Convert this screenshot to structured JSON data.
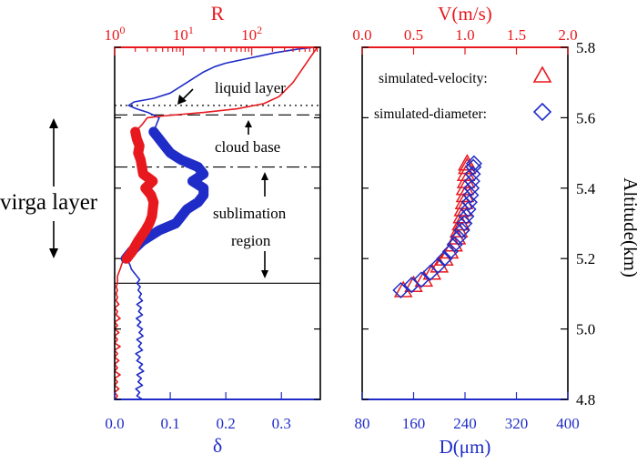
{
  "colors": {
    "red": "#e8191e",
    "blue": "#1f2cc7",
    "black": "#000000"
  },
  "texts": {
    "left_top_label": "R",
    "left_bottom_label": "δ",
    "right_top_label": "V(m/s)",
    "right_bottom_label": "D(μm)",
    "altitude_label": "Altitude(km)",
    "virga_label": "virga layer",
    "liquid_layer": "liquid layer",
    "cloud_base": "cloud base",
    "sublimation_1": "sublimation",
    "sublimation_2": "region",
    "legend_velocity": "simulated-velocity:",
    "legend_diameter": "simulated-diameter:"
  },
  "chart_data": [
    {
      "type": "line",
      "panel": "left",
      "x_bottom": {
        "label": "δ",
        "range": [
          0,
          0.37
        ],
        "ticks": [
          0.0,
          0.1,
          0.2,
          0.3
        ],
        "tick_labels": [
          "0.0",
          "0.1",
          "0.2",
          "0.3"
        ]
      },
      "x_top": {
        "label": "R",
        "scale": "log",
        "range": [
          1,
          1000
        ],
        "ticks": [
          1,
          10,
          100
        ],
        "tick_labels": [
          {
            "base": "10",
            "exp": "0"
          },
          {
            "base": "10",
            "exp": "1"
          },
          {
            "base": "10",
            "exp": "2"
          }
        ]
      },
      "y": {
        "range": [
          4.8,
          5.8
        ]
      },
      "reference_lines": [
        {
          "y": 5.635,
          "style": "dotted",
          "meaning": "liquid layer"
        },
        {
          "y": 5.608,
          "style": "dashed",
          "meaning": "cloud base"
        },
        {
          "y": 5.46,
          "style": "dashdot",
          "meaning": "sublimation region top"
        },
        {
          "y": 5.13,
          "style": "solid",
          "meaning": "sublimation region bottom"
        }
      ],
      "series": [
        {
          "name": "δ (full profile)",
          "axis": "bottom",
          "color": "#1f2cc7",
          "points": [
            [
              0.05,
              4.8
            ],
            [
              0.04,
              4.81
            ],
            [
              0.045,
              4.82
            ],
            [
              0.038,
              4.83
            ],
            [
              0.05,
              4.84
            ],
            [
              0.042,
              4.85
            ],
            [
              0.048,
              4.86
            ],
            [
              0.04,
              4.87
            ],
            [
              0.052,
              4.88
            ],
            [
              0.044,
              4.89
            ],
            [
              0.05,
              4.9
            ],
            [
              0.04,
              4.91
            ],
            [
              0.046,
              4.92
            ],
            [
              0.038,
              4.93
            ],
            [
              0.05,
              4.94
            ],
            [
              0.043,
              4.95
            ],
            [
              0.048,
              4.96
            ],
            [
              0.04,
              4.97
            ],
            [
              0.051,
              4.98
            ],
            [
              0.044,
              4.99
            ],
            [
              0.05,
              5.0
            ],
            [
              0.041,
              5.01
            ],
            [
              0.047,
              5.02
            ],
            [
              0.039,
              5.03
            ],
            [
              0.05,
              5.04
            ],
            [
              0.043,
              5.05
            ],
            [
              0.048,
              5.06
            ],
            [
              0.04,
              5.07
            ],
            [
              0.05,
              5.08
            ],
            [
              0.044,
              5.09
            ],
            [
              0.048,
              5.1
            ],
            [
              0.042,
              5.11
            ],
            [
              0.046,
              5.12
            ],
            [
              0.04,
              5.13
            ],
            [
              0.045,
              5.14
            ],
            [
              0.04,
              5.15
            ],
            [
              0.035,
              5.16
            ],
            [
              0.03,
              5.17
            ],
            [
              0.028,
              5.18
            ],
            [
              0.025,
              5.19
            ],
            [
              0.02,
              5.2
            ],
            [
              0.03,
              5.22
            ],
            [
              0.05,
              5.25
            ],
            [
              0.08,
              5.28
            ],
            [
              0.11,
              5.3
            ],
            [
              0.12,
              5.32
            ],
            [
              0.13,
              5.34
            ],
            [
              0.15,
              5.36
            ],
            [
              0.16,
              5.38
            ],
            [
              0.16,
              5.4
            ],
            [
              0.14,
              5.42
            ],
            [
              0.16,
              5.44
            ],
            [
              0.15,
              5.46
            ],
            [
              0.12,
              5.48
            ],
            [
              0.1,
              5.5
            ],
            [
              0.09,
              5.52
            ],
            [
              0.08,
              5.54
            ],
            [
              0.07,
              5.56
            ],
            [
              0.075,
              5.58
            ],
            [
              0.08,
              5.6
            ],
            [
              0.06,
              5.615
            ],
            [
              0.04,
              5.625
            ],
            [
              0.025,
              5.635
            ],
            [
              0.035,
              5.645
            ],
            [
              0.07,
              5.655
            ],
            [
              0.1,
              5.67
            ],
            [
              0.12,
              5.69
            ],
            [
              0.14,
              5.71
            ],
            [
              0.16,
              5.73
            ],
            [
              0.18,
              5.745
            ],
            [
              0.2,
              5.755
            ],
            [
              0.23,
              5.765
            ],
            [
              0.26,
              5.775
            ],
            [
              0.29,
              5.785
            ],
            [
              0.33,
              5.795
            ],
            [
              0.36,
              5.8
            ]
          ]
        },
        {
          "name": "δ (sublimation region)",
          "axis": "bottom",
          "color": "#1f2cc7",
          "points": [
            [
              0.02,
              5.2
            ],
            [
              0.03,
              5.22
            ],
            [
              0.05,
              5.25
            ],
            [
              0.08,
              5.28
            ],
            [
              0.11,
              5.3
            ],
            [
              0.12,
              5.32
            ],
            [
              0.13,
              5.34
            ],
            [
              0.15,
              5.36
            ],
            [
              0.16,
              5.38
            ],
            [
              0.16,
              5.4
            ],
            [
              0.14,
              5.42
            ],
            [
              0.16,
              5.44
            ],
            [
              0.15,
              5.46
            ],
            [
              0.12,
              5.48
            ],
            [
              0.1,
              5.5
            ],
            [
              0.09,
              5.52
            ],
            [
              0.08,
              5.54
            ],
            [
              0.07,
              5.56
            ]
          ]
        },
        {
          "name": "R (full profile)",
          "axis": "top",
          "color": "#e8191e",
          "points": [
            [
              1.0,
              4.8
            ],
            [
              1.1,
              4.81
            ],
            [
              1.0,
              4.82
            ],
            [
              1.15,
              4.83
            ],
            [
              1.0,
              4.84
            ],
            [
              1.1,
              4.85
            ],
            [
              1.0,
              4.86
            ],
            [
              1.2,
              4.87
            ],
            [
              1.0,
              4.88
            ],
            [
              1.1,
              4.89
            ],
            [
              1.0,
              4.9
            ],
            [
              1.15,
              4.91
            ],
            [
              1.0,
              4.92
            ],
            [
              1.1,
              4.93
            ],
            [
              1.0,
              4.94
            ],
            [
              1.2,
              4.95
            ],
            [
              1.0,
              4.96
            ],
            [
              1.1,
              4.97
            ],
            [
              1.0,
              4.98
            ],
            [
              1.15,
              4.99
            ],
            [
              1.0,
              5.0
            ],
            [
              1.1,
              5.01
            ],
            [
              1.0,
              5.02
            ],
            [
              1.2,
              5.03
            ],
            [
              1.05,
              5.04
            ],
            [
              1.1,
              5.05
            ],
            [
              1.0,
              5.06
            ],
            [
              1.15,
              5.07
            ],
            [
              1.05,
              5.08
            ],
            [
              1.1,
              5.09
            ],
            [
              1.05,
              5.1
            ],
            [
              1.1,
              5.11
            ],
            [
              1.05,
              5.12
            ],
            [
              1.1,
              5.13
            ],
            [
              1.1,
              5.15
            ],
            [
              1.2,
              5.17
            ],
            [
              1.3,
              5.19
            ],
            [
              1.5,
              5.2
            ],
            [
              1.8,
              5.22
            ],
            [
              2.2,
              5.25
            ],
            [
              2.8,
              5.28
            ],
            [
              3.2,
              5.3
            ],
            [
              3.5,
              5.32
            ],
            [
              3.6,
              5.34
            ],
            [
              3.7,
              5.36
            ],
            [
              3.4,
              5.38
            ],
            [
              2.8,
              5.4
            ],
            [
              3.6,
              5.42
            ],
            [
              2.6,
              5.44
            ],
            [
              2.5,
              5.46
            ],
            [
              2.4,
              5.48
            ],
            [
              2.2,
              5.5
            ],
            [
              2.3,
              5.52
            ],
            [
              2.1,
              5.54
            ],
            [
              2.0,
              5.56
            ],
            [
              2.5,
              5.58
            ],
            [
              3.0,
              5.6
            ],
            [
              5.0,
              5.605
            ],
            [
              10,
              5.61
            ],
            [
              20,
              5.615
            ],
            [
              60,
              5.625
            ],
            [
              150,
              5.64
            ],
            [
              250,
              5.66
            ],
            [
              400,
              5.7
            ],
            [
              600,
              5.75
            ],
            [
              900,
              5.8
            ]
          ]
        },
        {
          "name": "R (sublimation region)",
          "axis": "top",
          "color": "#e8191e",
          "points": [
            [
              1.5,
              5.2
            ],
            [
              1.8,
              5.22
            ],
            [
              2.2,
              5.25
            ],
            [
              2.8,
              5.28
            ],
            [
              3.2,
              5.3
            ],
            [
              3.5,
              5.32
            ],
            [
              3.6,
              5.34
            ],
            [
              3.7,
              5.36
            ],
            [
              3.4,
              5.38
            ],
            [
              2.8,
              5.4
            ],
            [
              3.6,
              5.42
            ],
            [
              2.6,
              5.44
            ],
            [
              2.5,
              5.46
            ],
            [
              2.4,
              5.48
            ],
            [
              2.2,
              5.5
            ],
            [
              2.3,
              5.52
            ],
            [
              2.1,
              5.54
            ],
            [
              2.0,
              5.56
            ]
          ]
        }
      ]
    },
    {
      "type": "scatter",
      "panel": "right",
      "x_bottom": {
        "label": "D(μm)",
        "range": [
          80,
          400
        ],
        "ticks": [
          80,
          160,
          240,
          320,
          400
        ],
        "tick_labels": [
          "80",
          "160",
          "240",
          "320",
          "400"
        ]
      },
      "x_top": {
        "label": "V(m/s)",
        "range": [
          0,
          2.0
        ],
        "ticks": [
          0,
          0.5,
          1.0,
          1.5,
          2.0
        ],
        "tick_labels": [
          "0.0",
          "0.5",
          "1.0",
          "1.5",
          "2.0"
        ]
      },
      "y": {
        "label": "Altitude(km)",
        "range": [
          4.8,
          5.8
        ],
        "ticks": [
          4.8,
          5.0,
          5.2,
          5.4,
          5.6,
          5.8
        ],
        "tick_labels": [
          "4.8",
          "5.0",
          "5.2",
          "5.4",
          "5.6",
          "5.8"
        ]
      },
      "legend": "top-right",
      "series": [
        {
          "name": "simulated-velocity:",
          "axis": "top",
          "marker": "triangle",
          "color": "#e8191e",
          "points": [
            [
              0.4,
              5.11
            ],
            [
              0.5,
              5.125
            ],
            [
              0.6,
              5.14
            ],
            [
              0.68,
              5.16
            ],
            [
              0.75,
              5.18
            ],
            [
              0.8,
              5.2
            ],
            [
              0.85,
              5.22
            ],
            [
              0.89,
              5.24
            ],
            [
              0.92,
              5.26
            ],
            [
              0.94,
              5.28
            ],
            [
              0.96,
              5.3
            ],
            [
              0.97,
              5.32
            ],
            [
              0.98,
              5.34
            ],
            [
              0.99,
              5.36
            ],
            [
              1.0,
              5.38
            ],
            [
              1.0,
              5.4
            ],
            [
              1.01,
              5.42
            ],
            [
              1.01,
              5.44
            ],
            [
              1.02,
              5.46
            ],
            [
              1.02,
              5.47
            ]
          ]
        },
        {
          "name": "simulated-diameter:",
          "axis": "bottom",
          "marker": "diamond",
          "color": "#1f2cc7",
          "points": [
            [
              140,
              5.11
            ],
            [
              157,
              5.125
            ],
            [
              172,
              5.14
            ],
            [
              186,
              5.16
            ],
            [
              198,
              5.18
            ],
            [
              208,
              5.2
            ],
            [
              217,
              5.22
            ],
            [
              224,
              5.24
            ],
            [
              230,
              5.26
            ],
            [
              235,
              5.28
            ],
            [
              239,
              5.3
            ],
            [
              242,
              5.32
            ],
            [
              245,
              5.34
            ],
            [
              247,
              5.36
            ],
            [
              249,
              5.38
            ],
            [
              250,
              5.4
            ],
            [
              251,
              5.42
            ],
            [
              252,
              5.44
            ],
            [
              253,
              5.46
            ],
            [
              254,
              5.47
            ]
          ]
        }
      ]
    }
  ]
}
